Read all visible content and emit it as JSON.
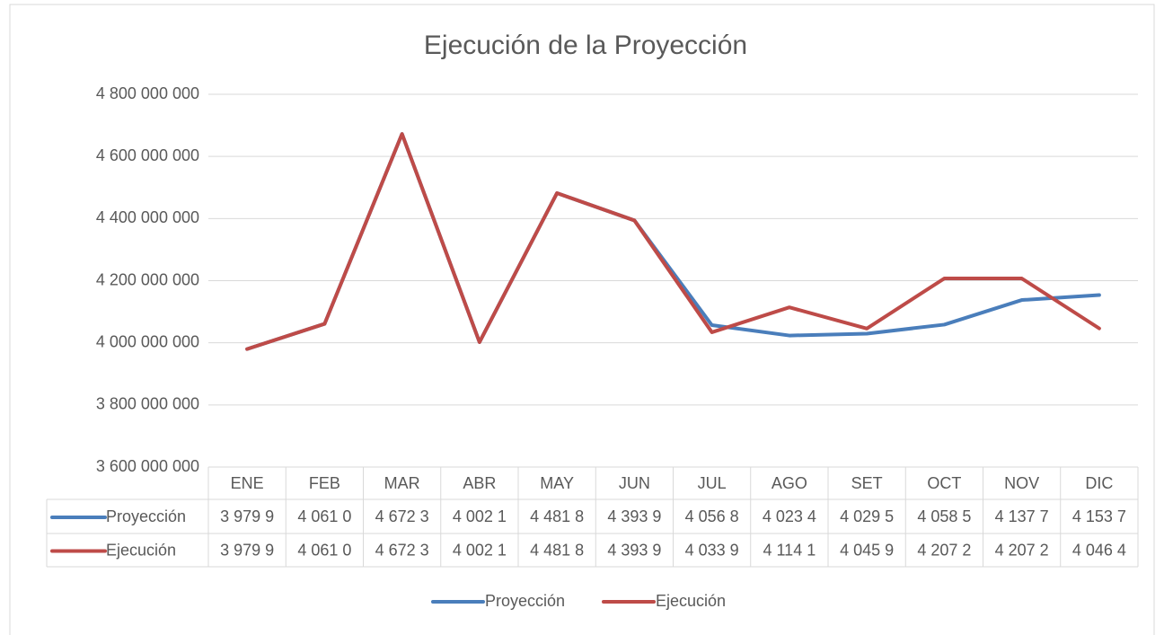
{
  "chart_data": {
    "type": "line",
    "title": "Ejecución de la Proyección",
    "categories": [
      "ENE",
      "FEB",
      "MAR",
      "ABR",
      "MAY",
      "JUN",
      "JUL",
      "AGO",
      "SET",
      "OCT",
      "NOV",
      "DIC"
    ],
    "series": [
      {
        "name": "Proyección",
        "color": "#4a7ebb",
        "values": [
          3979900000,
          4061000000,
          4672300000,
          4002100000,
          4481800000,
          4393900000,
          4056800000,
          4023400000,
          4029500000,
          4058500000,
          4137700000,
          4153700000
        ],
        "value_labels": [
          "3 979 9",
          "4 061 0",
          "4 672 3",
          "4 002 1",
          "4 481 8",
          "4 393 9",
          "4 056 8",
          "4 023 4",
          "4 029 5",
          "4 058 5",
          "4 137 7",
          "4 153 7"
        ]
      },
      {
        "name": "Ejecución",
        "color": "#be4b48",
        "values": [
          3979900000,
          4061000000,
          4672300000,
          4002100000,
          4481800000,
          4393900000,
          4033900000,
          4114100000,
          4045900000,
          4207200000,
          4207200000,
          4046400000
        ],
        "value_labels": [
          "3 979 9",
          "4 061 0",
          "4 672 3",
          "4 002 1",
          "4 481 8",
          "4 393 9",
          "4 033 9",
          "4 114 1",
          "4 045 9",
          "4 207 2",
          "4 207 2",
          "4 046 4"
        ]
      }
    ],
    "ylim": [
      3600000000,
      4800000000
    ],
    "yticks": [
      {
        "value": 3600000000,
        "label": "3 600 000 000"
      },
      {
        "value": 3800000000,
        "label": "3 800 000 000"
      },
      {
        "value": 4000000000,
        "label": "4 000 000 000"
      },
      {
        "value": 4200000000,
        "label": "4 200 000 000"
      },
      {
        "value": 4400000000,
        "label": "4 400 000 000"
      },
      {
        "value": 4600000000,
        "label": "4 600 000 000"
      },
      {
        "value": 4800000000,
        "label": "4 800 000 000"
      }
    ],
    "grid": true,
    "legend": "bottom"
  }
}
